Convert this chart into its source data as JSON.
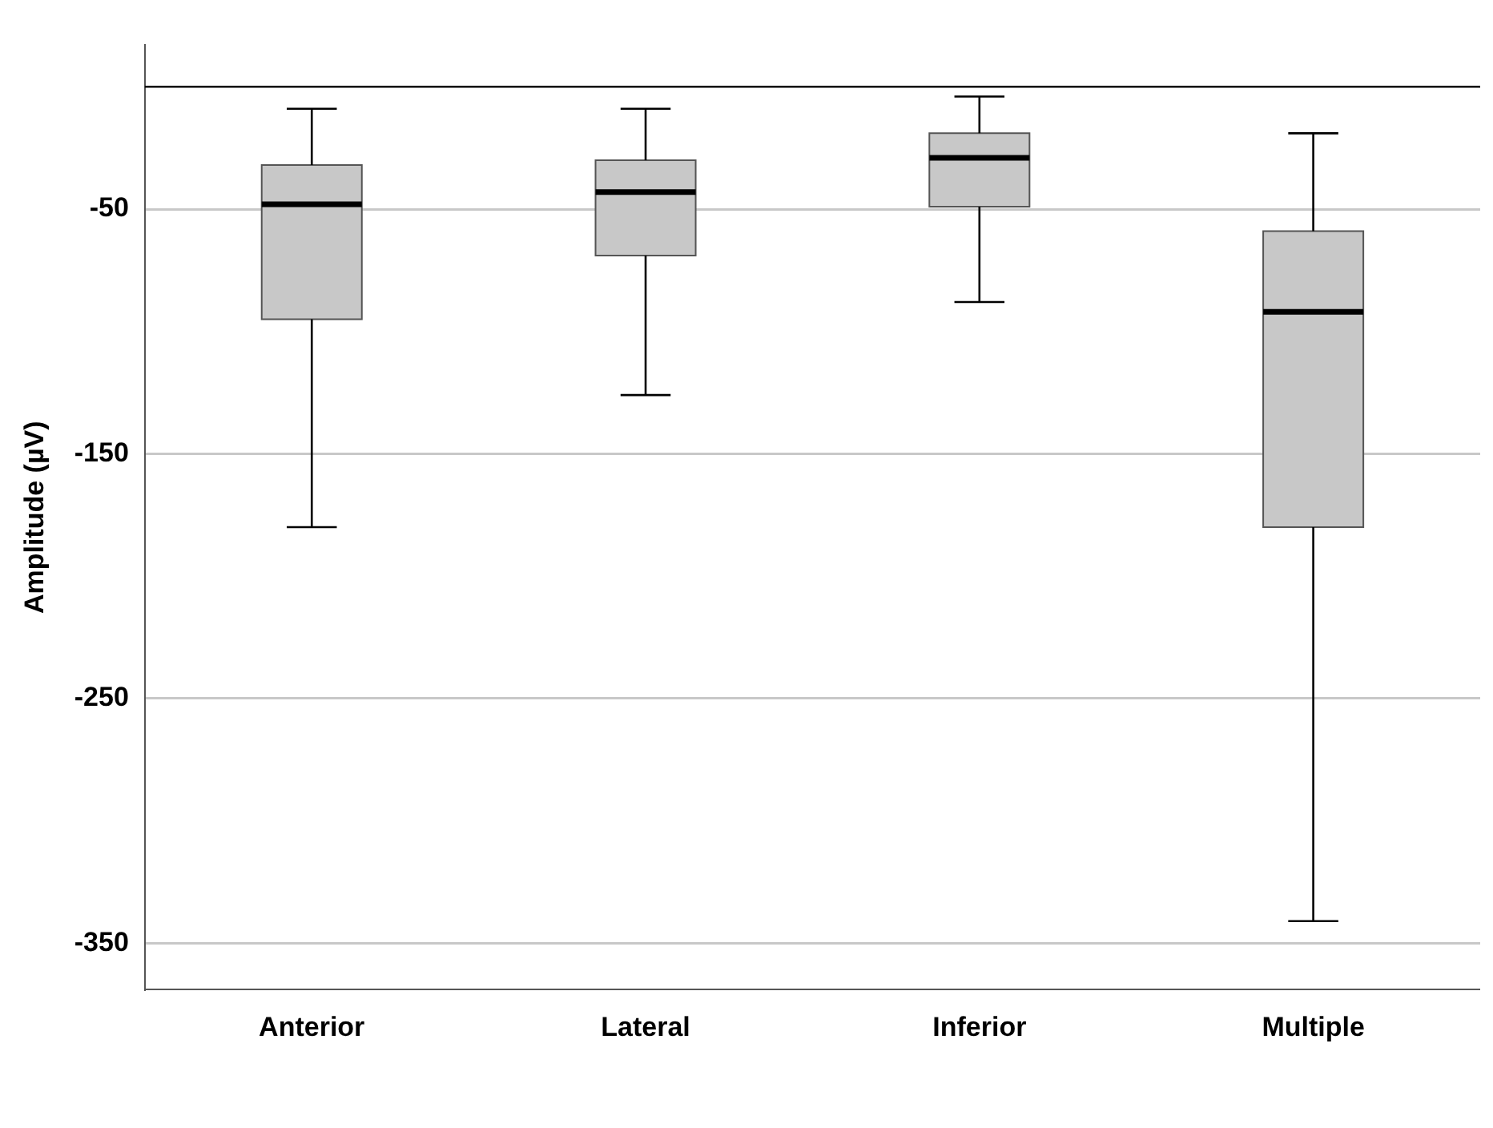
{
  "chart_data": {
    "type": "box",
    "ylabel": "Amplitude (µV)",
    "categories": [
      "Anterior",
      "Lateral",
      "Inferior",
      "Multiple"
    ],
    "series": [
      {
        "color": "#c8c8c8",
        "boxes": [
          {
            "low": -180,
            "q1": -95,
            "median": -48,
            "q3": -32,
            "high": -9
          },
          {
            "low": -126,
            "q1": -69,
            "median": -43,
            "q3": -30,
            "high": -9
          },
          {
            "low": -88,
            "q1": -49,
            "median": -29,
            "q3": -19,
            "high": -4
          },
          {
            "low": -341,
            "q1": -180,
            "median": -92,
            "q3": -59,
            "high": -19
          }
        ]
      }
    ],
    "ylim": [
      -369,
      17
    ],
    "yticks": [
      -50,
      -150,
      -250,
      -350
    ],
    "grid": "y",
    "legend": false,
    "ref_lines": [
      {
        "axis": "y",
        "value": 0,
        "color": "#000000"
      }
    ]
  }
}
